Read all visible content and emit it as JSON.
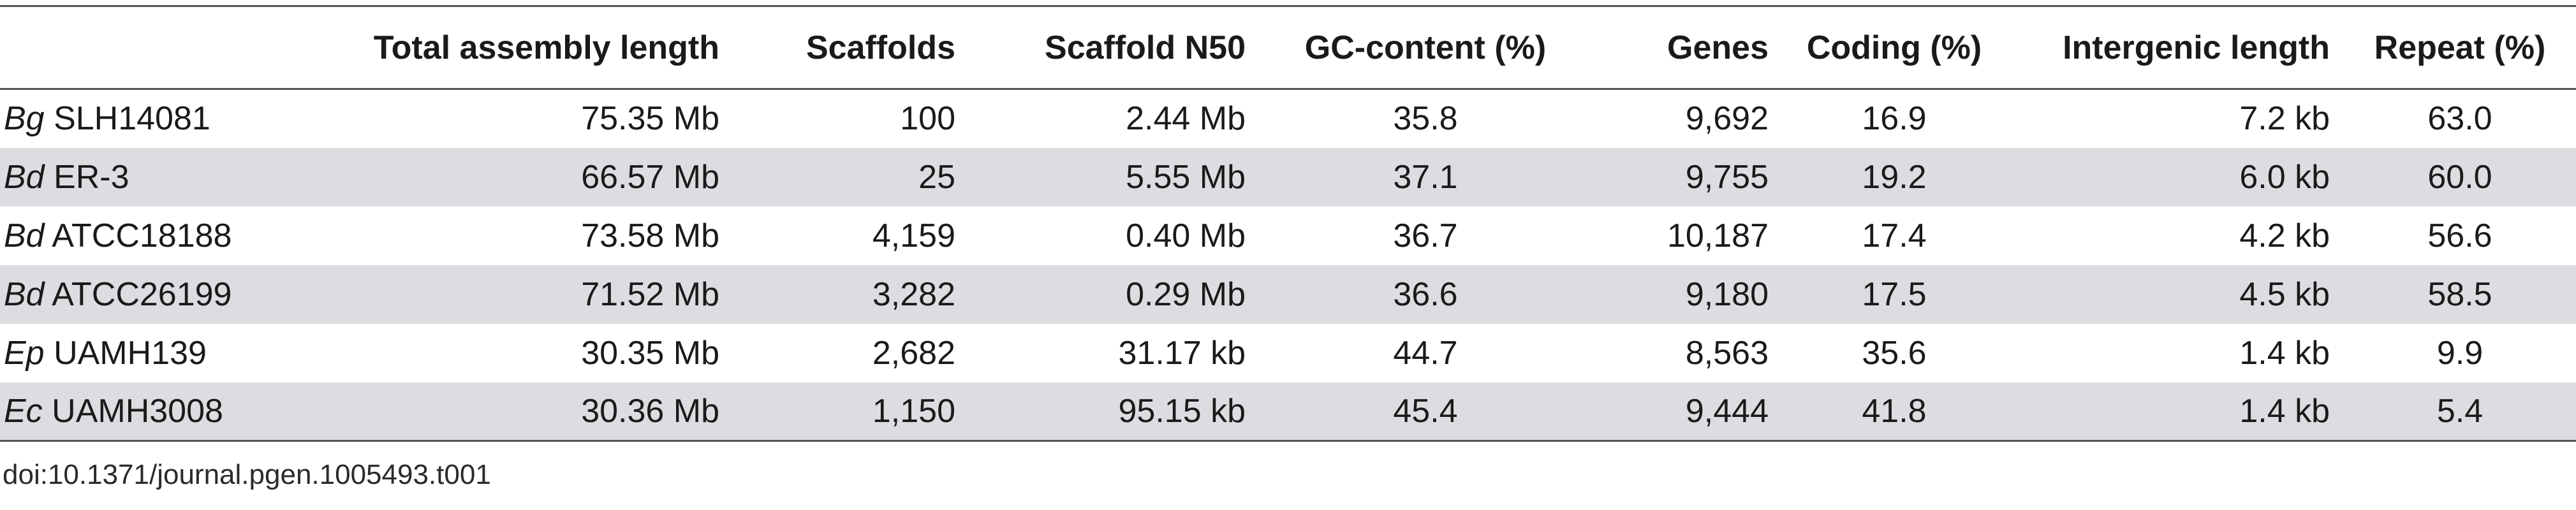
{
  "table": {
    "headers": [
      "",
      "Total assembly length",
      "Scaffolds",
      "Scaffold N50",
      "GC-content (%)",
      "Genes",
      "Coding (%)",
      "Intergenic length",
      "Repeat (%)"
    ],
    "rows": [
      {
        "abbr": "Bg",
        "strain": "SLH14081",
        "total_length": "75.35 Mb",
        "scaffolds": "100",
        "n50": "2.44 Mb",
        "gc": "35.8",
        "genes": "9,692",
        "coding": "16.9",
        "intergenic": "7.2 kb",
        "repeat": "63.0"
      },
      {
        "abbr": "Bd",
        "strain": "ER-3",
        "total_length": "66.57 Mb",
        "scaffolds": "25",
        "n50": "5.55 Mb",
        "gc": "37.1",
        "genes": "9,755",
        "coding": "19.2",
        "intergenic": "6.0 kb",
        "repeat": "60.0"
      },
      {
        "abbr": "Bd",
        "strain": "ATCC18188",
        "total_length": "73.58 Mb",
        "scaffolds": "4,159",
        "n50": "0.40 Mb",
        "gc": "36.7",
        "genes": "10,187",
        "coding": "17.4",
        "intergenic": "4.2 kb",
        "repeat": "56.6"
      },
      {
        "abbr": "Bd",
        "strain": "ATCC26199",
        "total_length": "71.52 Mb",
        "scaffolds": "3,282",
        "n50": "0.29 Mb",
        "gc": "36.6",
        "genes": "9,180",
        "coding": "17.5",
        "intergenic": "4.5 kb",
        "repeat": "58.5"
      },
      {
        "abbr": "Ep",
        "strain": "UAMH139",
        "total_length": "30.35 Mb",
        "scaffolds": "2,682",
        "n50": "31.17 kb",
        "gc": "44.7",
        "genes": "8,563",
        "coding": "35.6",
        "intergenic": "1.4 kb",
        "repeat": "9.9"
      },
      {
        "abbr": "Ec",
        "strain": "UAMH3008",
        "total_length": "30.36 Mb",
        "scaffolds": "1,150",
        "n50": "95.15 kb",
        "gc": "45.4",
        "genes": "9,444",
        "coding": "41.8",
        "intergenic": "1.4 kb",
        "repeat": "5.4"
      }
    ]
  },
  "footer": {
    "doi": "doi:10.1371/journal.pgen.1005493.t001"
  }
}
